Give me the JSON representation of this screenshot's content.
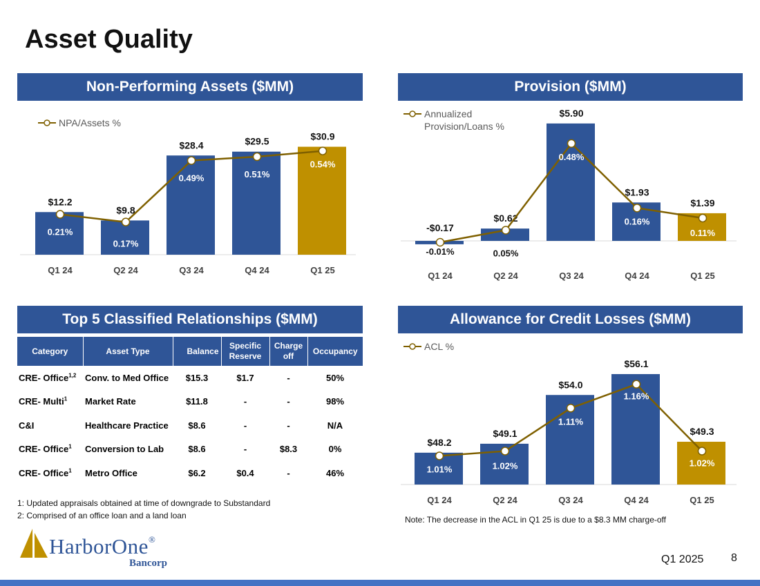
{
  "page_title": "Asset Quality",
  "colors": {
    "blue": "#2f5597",
    "gold": "#bf9000",
    "line": "#7f6000",
    "white": "#ffffff"
  },
  "panels": {
    "npa": {
      "title": "Non-Performing Assets ($MM)"
    },
    "provision": {
      "title": "Provision ($MM)"
    },
    "classified": {
      "title": "Top 5 Classified Relationships ($MM)"
    },
    "acl": {
      "title": "Allowance for Credit Losses ($MM)"
    }
  },
  "chart_data": [
    {
      "id": "npa",
      "type": "bar",
      "categories": [
        "Q1 24",
        "Q2 24",
        "Q3 24",
        "Q4 24",
        "Q1 25"
      ],
      "series": [
        {
          "values": [
            12.2,
            9.8,
            28.4,
            29.5,
            30.9
          ],
          "labels": [
            "$12.2",
            "$9.8",
            "$28.4",
            "$29.5",
            "$30.9"
          ]
        },
        {
          "name": "NPA/Assets %",
          "type": "line",
          "values": [
            0.21,
            0.17,
            0.49,
            0.51,
            0.54
          ],
          "labels": [
            "0.21%",
            "0.17%",
            "0.49%",
            "0.51%",
            "0.54%"
          ]
        }
      ],
      "highlight_last": true
    },
    {
      "id": "provision",
      "type": "bar",
      "categories": [
        "Q1 24",
        "Q2 24",
        "Q3 24",
        "Q4 24",
        "Q1 25"
      ],
      "series": [
        {
          "values": [
            -0.17,
            0.62,
            5.9,
            1.93,
            1.39
          ],
          "labels": [
            "-$0.17",
            "$0.62",
            "$5.90",
            "$1.93",
            "$1.39"
          ]
        },
        {
          "name": "Annualized Provision/Loans %",
          "type": "line",
          "values": [
            -0.01,
            0.05,
            0.48,
            0.16,
            0.11
          ],
          "labels": [
            "-0.01%",
            "0.05%",
            "0.48%",
            "0.16%",
            "0.11%"
          ]
        }
      ],
      "highlight_last": true
    },
    {
      "id": "acl",
      "type": "bar",
      "categories": [
        "Q1 24",
        "Q2 24",
        "Q3 24",
        "Q4 24",
        "Q1 25"
      ],
      "series": [
        {
          "values": [
            48.2,
            49.1,
            54.0,
            56.1,
            49.3
          ],
          "labels": [
            "$48.2",
            "$49.1",
            "$54.0",
            "$56.1",
            "$49.3"
          ]
        },
        {
          "name": "ACL %",
          "type": "line",
          "values": [
            1.01,
            1.02,
            1.11,
            1.16,
            1.02
          ],
          "labels": [
            "1.01%",
            "1.02%",
            "1.11%",
            "1.16%",
            "1.02%"
          ]
        }
      ],
      "highlight_last": true
    }
  ],
  "classified_table": {
    "headers": [
      "Category",
      "Asset Type",
      "Balance",
      "Specific Reserve",
      "Charge off",
      "Occupancy"
    ],
    "rows": [
      {
        "category": "CRE- Office",
        "sup": "1,2",
        "asset_type": "Conv. to Med Office",
        "balance": "$15.3",
        "reserve": "$1.7",
        "charge_off": "-",
        "occupancy": "50%"
      },
      {
        "category": "CRE- Multi",
        "sup": "1",
        "asset_type": "Market Rate",
        "balance": "$11.8",
        "reserve": "-",
        "charge_off": "-",
        "occupancy": "98%"
      },
      {
        "category": "C&I",
        "sup": "",
        "asset_type": "Healthcare Practice",
        "balance": "$8.6",
        "reserve": "-",
        "charge_off": "-",
        "occupancy": "N/A"
      },
      {
        "category": "CRE- Office",
        "sup": "1",
        "asset_type": "Conversion to Lab",
        "balance": "$8.6",
        "reserve": "-",
        "charge_off": "$8.3",
        "occupancy": "0%"
      },
      {
        "category": "CRE- Office",
        "sup": "1",
        "asset_type": "Metro Office",
        "balance": "$6.2",
        "reserve": "$0.4",
        "charge_off": "-",
        "occupancy": "46%"
      }
    ]
  },
  "footnotes": {
    "note1": "1: Updated appraisals obtained at time of downgrade to Substandard",
    "note2": "2: Comprised of an office loan and a land loan",
    "acl_note": "Note: The decrease in the ACL in Q1 25 is due to a $8.3 MM charge-off"
  },
  "logo": {
    "name": "HarborOne",
    "registered": "®",
    "sub": "Bancorp"
  },
  "footer": {
    "date": "Q1 2025",
    "page": "8"
  }
}
